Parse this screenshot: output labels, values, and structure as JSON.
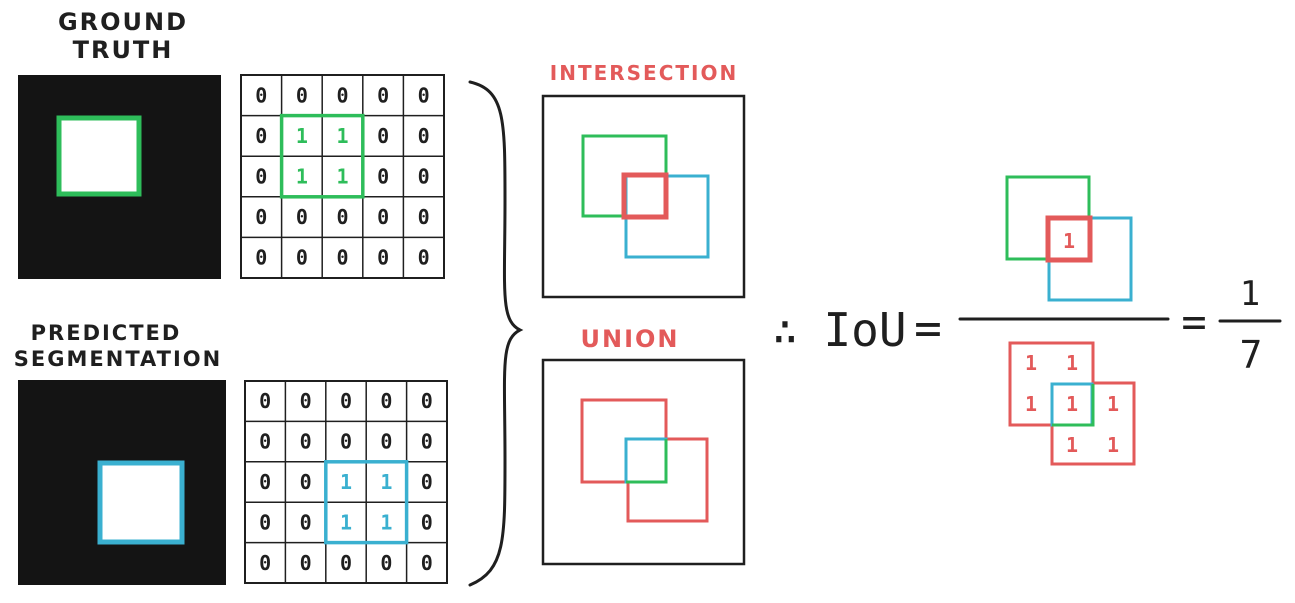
{
  "labels": {
    "ground_truth_line1": "GROUND",
    "ground_truth_line2": "TRUTH",
    "predicted_line1": "PREDICTED",
    "predicted_line2": "SEGMENTATION",
    "intersection": "INTERSECTION",
    "union": "UNION",
    "therefore": "∴",
    "iou": "IoU",
    "equals": "=",
    "equals2": "=",
    "result_numerator": "1",
    "result_denominator": "7",
    "numerator_cell": "1"
  },
  "ground_truth_grid": [
    [
      "0",
      "0",
      "0",
      "0",
      "0"
    ],
    [
      "0",
      "1",
      "1",
      "0",
      "0"
    ],
    [
      "0",
      "1",
      "1",
      "0",
      "0"
    ],
    [
      "0",
      "0",
      "0",
      "0",
      "0"
    ],
    [
      "0",
      "0",
      "0",
      "0",
      "0"
    ]
  ],
  "predicted_grid": [
    [
      "0",
      "0",
      "0",
      "0",
      "0"
    ],
    [
      "0",
      "0",
      "0",
      "0",
      "0"
    ],
    [
      "0",
      "0",
      "1",
      "1",
      "0"
    ],
    [
      "0",
      "0",
      "1",
      "1",
      "0"
    ],
    [
      "0",
      "0",
      "0",
      "0",
      "0"
    ]
  ],
  "union_cells": [
    "1",
    "1",
    "1",
    "1",
    "1",
    "1",
    "1"
  ],
  "colors": {
    "green": "#2ebd5a",
    "blue": "#3ab0d0",
    "red": "#e35a5a",
    "black": "#141414",
    "ink": "#1f1f1f"
  }
}
